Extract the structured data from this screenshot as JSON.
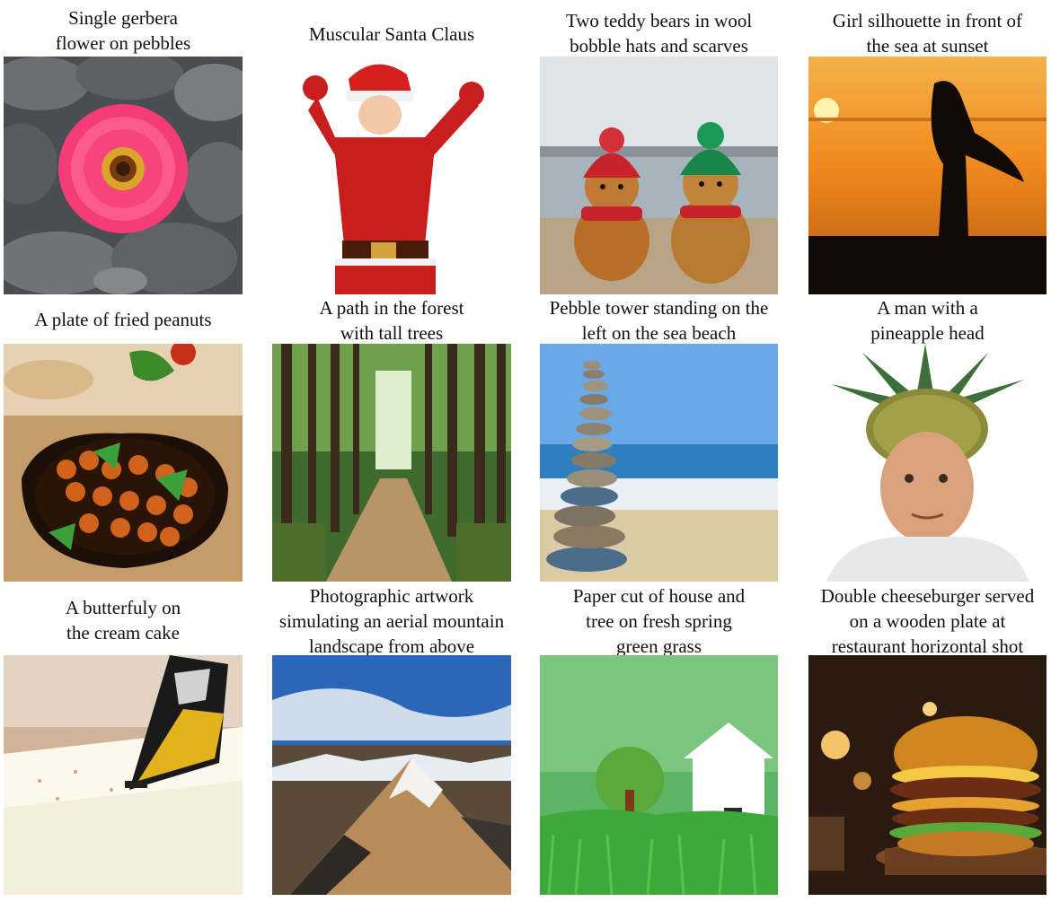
{
  "figure": {
    "rows": [
      [
        {
          "caption": "Single gerbera\nflower on pebbles",
          "subject": "pink gerbera flower on grey pebbles"
        },
        {
          "caption": "Muscular Santa Claus",
          "subject": "muscular santa claus flexing"
        },
        {
          "caption": "Two teddy bears in wool\nbobble hats and scarves",
          "subject": "two teddy bears on beach"
        },
        {
          "caption": "Girl silhouette in front of\nthe sea at sunset",
          "subject": "girl silhouette at sunset"
        }
      ],
      [
        {
          "caption": "A plate of fried peanuts",
          "subject": "bowl of fried chickpeas with herbs"
        },
        {
          "caption": "A path in the forest\nwith tall trees",
          "subject": "forest path with tall trees"
        },
        {
          "caption": "Pebble tower standing on the\nleft on the sea beach",
          "subject": "stacked pebble tower on beach"
        },
        {
          "caption": "A man with a\npineapple head",
          "subject": "man wearing pineapple on head"
        }
      ],
      [
        {
          "caption": "A butterfuly on\nthe cream cake",
          "subject": "butterfly on cream cake"
        },
        {
          "caption": "Photographic artwork\nsimulating an aerial mountain\nlandscape from above",
          "subject": "aerial snowy mountain"
        },
        {
          "caption": "Paper cut of house and\ntree on fresh spring\ngreen grass",
          "subject": "paper cut house and tree on grass"
        },
        {
          "caption": "Double cheeseburger served\non a wooden plate at\nrestaurant horizontal shot",
          "subject": "double cheeseburger on wooden plate"
        }
      ]
    ]
  }
}
